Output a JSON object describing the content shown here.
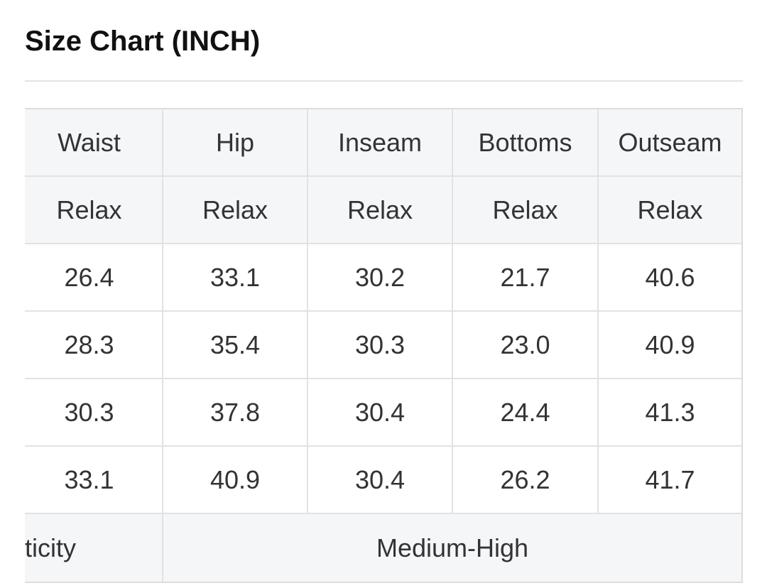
{
  "title": "Size Chart (INCH)",
  "table": {
    "headers": [
      "Waist",
      "Hip",
      "Inseam",
      "Bottoms",
      "Outseam"
    ],
    "subheaders": [
      "Relax",
      "Relax",
      "Relax",
      "Relax",
      "Relax"
    ],
    "rows": [
      [
        "26.4",
        "33.1",
        "30.2",
        "21.7",
        "40.6"
      ],
      [
        "28.3",
        "35.4",
        "30.3",
        "23.0",
        "40.9"
      ],
      [
        "30.3",
        "37.8",
        "30.4",
        "24.4",
        "41.3"
      ],
      [
        "33.1",
        "40.9",
        "30.4",
        "26.2",
        "41.7"
      ]
    ],
    "footer": {
      "label": "ticity",
      "value": "Medium-High"
    }
  }
}
